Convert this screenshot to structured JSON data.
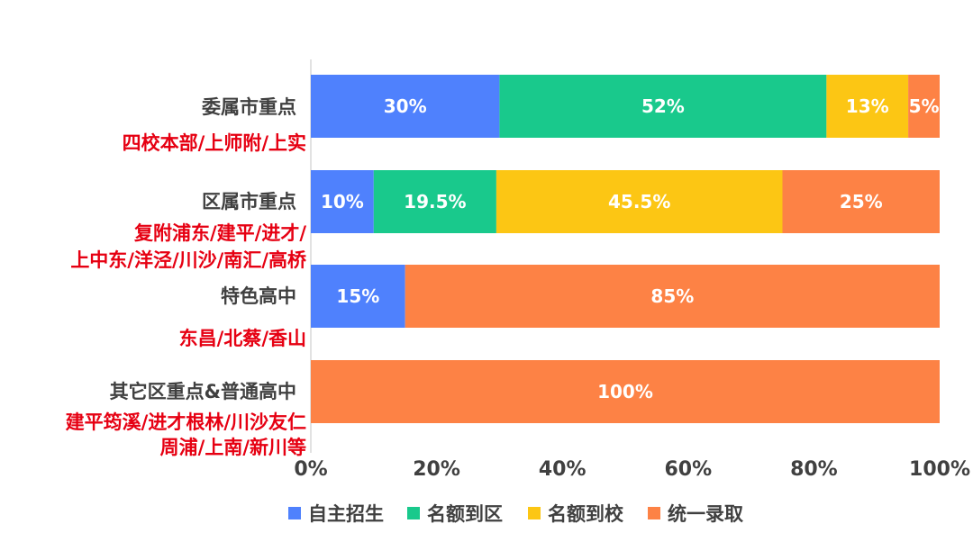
{
  "chart_data": {
    "type": "bar",
    "orientation": "horizontal",
    "stacked": true,
    "title": "",
    "xlabel": "",
    "ylabel": "",
    "xlim": [
      0,
      100
    ],
    "x_ticks": [
      "0%",
      "20%",
      "40%",
      "60%",
      "80%",
      "100%"
    ],
    "grid": false,
    "legend_position": "bottom",
    "categories": [
      {
        "name": "委属市重点",
        "schools": [
          "四校本部/上师附/上实"
        ]
      },
      {
        "name": "区属市重点",
        "schools": [
          "复附浦东/建平/进才/",
          "上中东/洋泾/川沙/南汇/高桥"
        ]
      },
      {
        "name": "特色高中",
        "schools": [
          "东昌/北蔡/香山"
        ]
      },
      {
        "name": "其它区重点&普通高中",
        "schools": [
          "建平筠溪/进才根林/川沙友仁",
          "周浦/上南/新川等"
        ]
      }
    ],
    "series": [
      {
        "name": "自主招生",
        "color": "#4f81fd",
        "values": [
          30,
          10,
          15,
          0
        ],
        "labels": [
          "30%",
          "10%",
          "15%",
          ""
        ]
      },
      {
        "name": "名额到区",
        "color": "#19c98c",
        "values": [
          52,
          19.5,
          0,
          0
        ],
        "labels": [
          "52%",
          "19.5%",
          "",
          ""
        ]
      },
      {
        "name": "名额到校",
        "color": "#fcc614",
        "values": [
          13,
          45.5,
          0,
          0
        ],
        "labels": [
          "13%",
          "45.5%",
          "",
          ""
        ]
      },
      {
        "name": "统一录取",
        "color": "#fd8245",
        "values": [
          5,
          25,
          85,
          100
        ],
        "labels": [
          "5%",
          "25%",
          "85%",
          "100%"
        ]
      }
    ]
  }
}
